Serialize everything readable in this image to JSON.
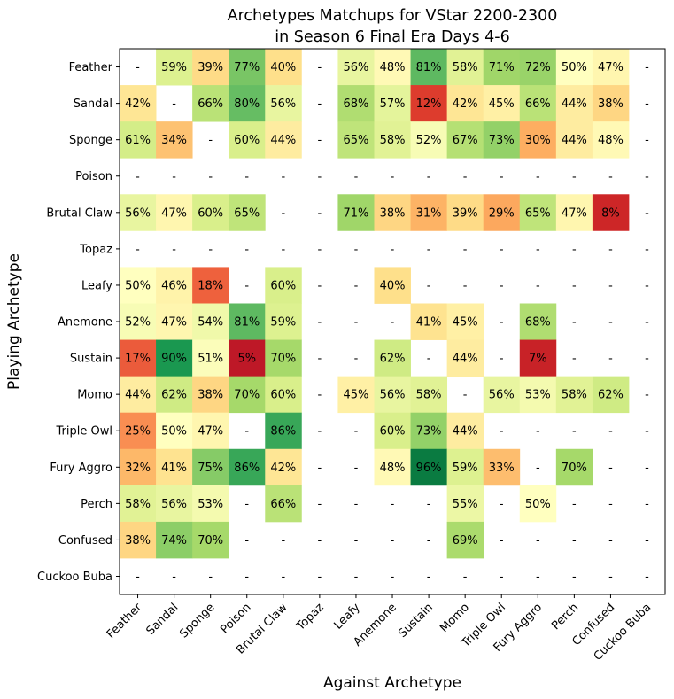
{
  "chart_data": {
    "type": "heatmap",
    "title": "Archetypes Matchups for VStar 2200-2300",
    "subtitle": "in Season 6 Final Era Days 4-6",
    "xlabel": "Against Archetype",
    "ylabel": "Playing Archetype",
    "colormap": "RdYlGn",
    "vmin": 0,
    "vmax": 100,
    "missing_label": "-",
    "columns": [
      "Feather",
      "Sandal",
      "Sponge",
      "Poison",
      "Brutal Claw",
      "Topaz",
      "Leafy",
      "Anemone",
      "Sustain",
      "Momo",
      "Triple Owl",
      "Fury Aggro",
      "Perch",
      "Confused",
      "Cuckoo Buba"
    ],
    "rows": [
      "Feather",
      "Sandal",
      "Sponge",
      "Poison",
      "Brutal Claw",
      "Topaz",
      "Leafy",
      "Anemone",
      "Sustain",
      "Momo",
      "Triple Owl",
      "Fury Aggro",
      "Perch",
      "Confused",
      "Cuckoo Buba"
    ],
    "values": [
      [
        null,
        59,
        39,
        77,
        40,
        null,
        56,
        48,
        81,
        58,
        71,
        72,
        50,
        47,
        null
      ],
      [
        42,
        null,
        66,
        80,
        56,
        null,
        68,
        57,
        12,
        42,
        45,
        66,
        44,
        38,
        null
      ],
      [
        61,
        34,
        null,
        60,
        44,
        null,
        65,
        58,
        52,
        67,
        73,
        30,
        44,
        48,
        null
      ],
      [
        null,
        null,
        null,
        null,
        null,
        null,
        null,
        null,
        null,
        null,
        null,
        null,
        null,
        null,
        null
      ],
      [
        56,
        47,
        60,
        65,
        null,
        null,
        71,
        38,
        31,
        39,
        29,
        65,
        47,
        8,
        null
      ],
      [
        null,
        null,
        null,
        null,
        null,
        null,
        null,
        null,
        null,
        null,
        null,
        null,
        null,
        null,
        null
      ],
      [
        50,
        46,
        18,
        null,
        60,
        null,
        null,
        40,
        null,
        null,
        null,
        null,
        null,
        null,
        null
      ],
      [
        52,
        47,
        54,
        81,
        59,
        null,
        null,
        null,
        41,
        45,
        null,
        68,
        null,
        null,
        null
      ],
      [
        17,
        90,
        51,
        5,
        70,
        null,
        null,
        62,
        null,
        44,
        null,
        7,
        null,
        null,
        null
      ],
      [
        44,
        62,
        38,
        70,
        60,
        null,
        45,
        56,
        58,
        null,
        56,
        53,
        58,
        62,
        null
      ],
      [
        25,
        50,
        47,
        null,
        86,
        null,
        null,
        60,
        73,
        44,
        null,
        null,
        null,
        null,
        null
      ],
      [
        32,
        41,
        75,
        86,
        42,
        null,
        null,
        48,
        96,
        59,
        33,
        null,
        70,
        null,
        null
      ],
      [
        58,
        56,
        53,
        null,
        66,
        null,
        null,
        null,
        null,
        55,
        null,
        50,
        null,
        null,
        null
      ],
      [
        38,
        74,
        70,
        null,
        null,
        null,
        null,
        null,
        null,
        69,
        null,
        null,
        null,
        null,
        null
      ],
      [
        null,
        null,
        null,
        null,
        null,
        null,
        null,
        null,
        null,
        null,
        null,
        null,
        null,
        null,
        null
      ]
    ]
  }
}
